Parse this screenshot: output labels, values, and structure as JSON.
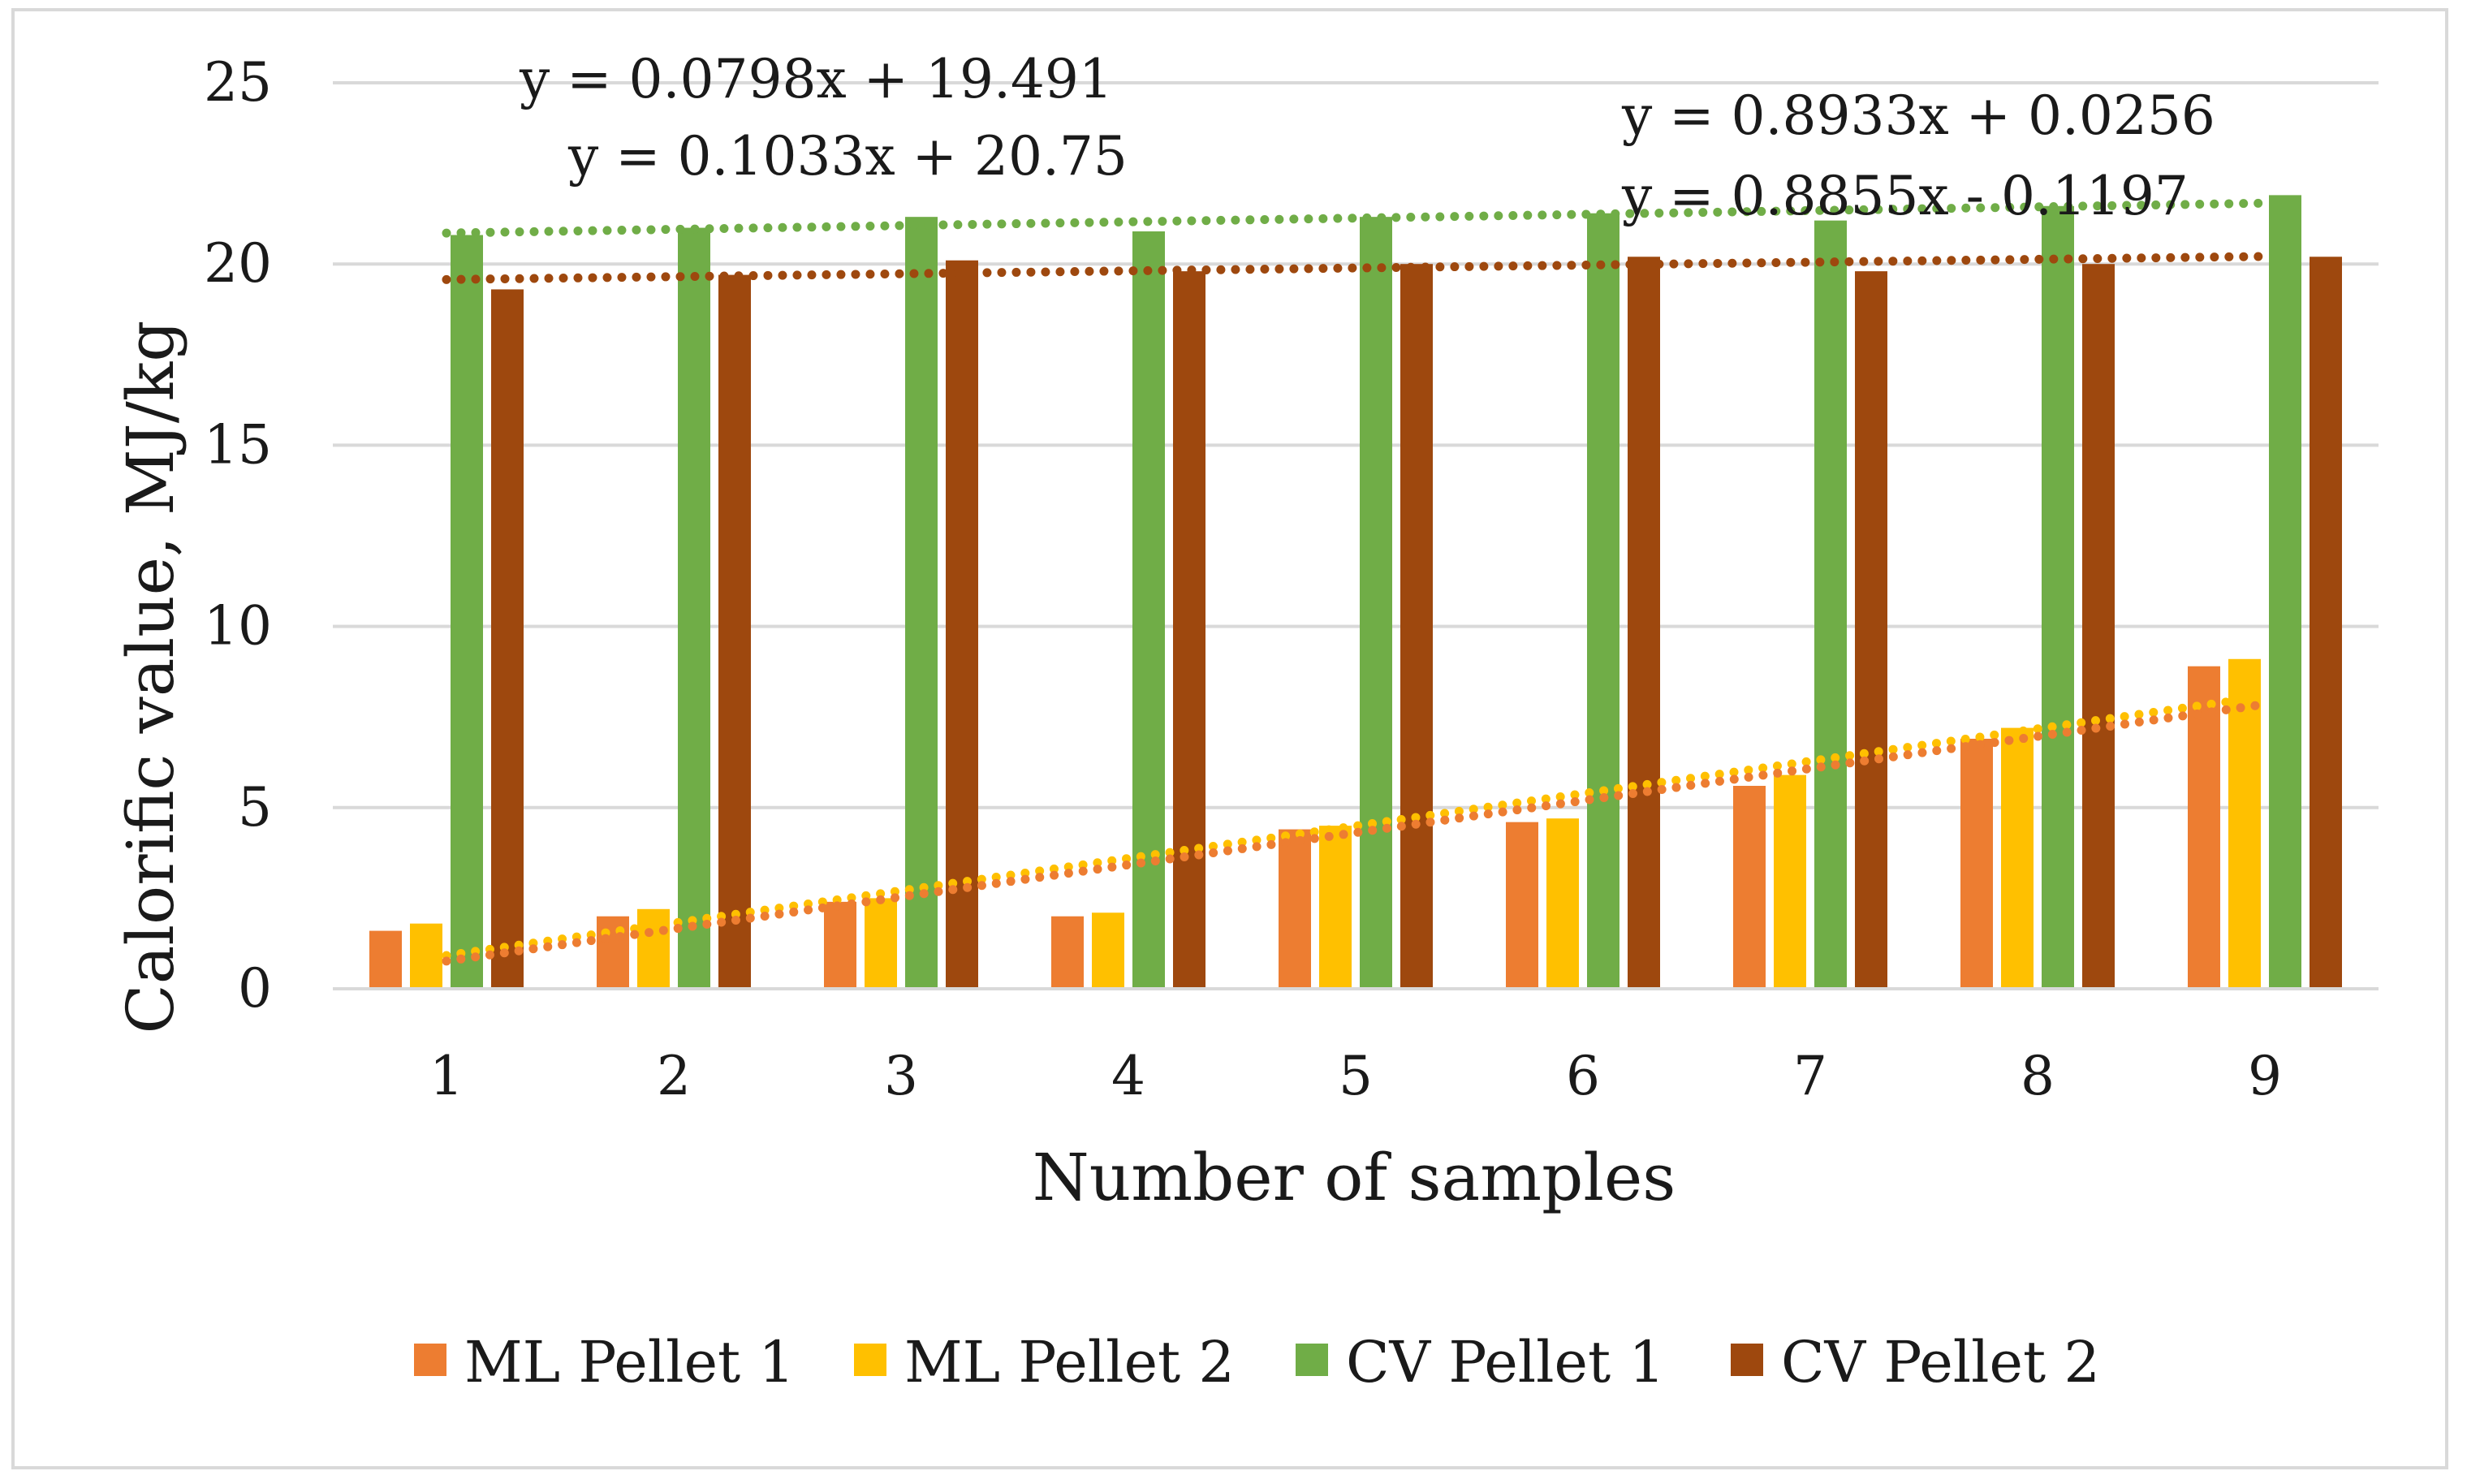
{
  "chart_data": {
    "type": "bar",
    "title": "",
    "xlabel": "Number of samples",
    "ylabel": "Calorific value, MJ/kg",
    "ylim": [
      0,
      25
    ],
    "yticks": [
      "0",
      "5",
      "10",
      "15",
      "20",
      "25"
    ],
    "categories": [
      "1",
      "2",
      "3",
      "4",
      "5",
      "6",
      "7",
      "8",
      "9"
    ],
    "grid": true,
    "legend_position": "bottom",
    "series": [
      {
        "name": "ML Pellet 1",
        "color": "#ed7d31",
        "values": [
          1.6,
          2.0,
          2.4,
          2.0,
          4.4,
          4.6,
          5.6,
          6.9,
          8.9
        ]
      },
      {
        "name": "ML Pellet 2",
        "color": "#ffc000",
        "values": [
          1.8,
          2.2,
          2.5,
          2.1,
          4.5,
          4.7,
          5.9,
          7.2,
          9.1
        ]
      },
      {
        "name": "CV Pellet 1",
        "color": "#70ad47",
        "values": [
          20.8,
          21.0,
          21.3,
          20.9,
          21.3,
          21.4,
          21.2,
          21.6,
          21.9
        ]
      },
      {
        "name": "CV Pellet 2",
        "color": "#9e480e",
        "values": [
          19.3,
          19.7,
          20.1,
          19.8,
          20.0,
          20.2,
          19.8,
          20.0,
          20.2
        ]
      }
    ],
    "trendlines": [
      {
        "series": "CV Pellet 2",
        "slope": 0.0798,
        "intercept": 19.491,
        "color": "#9e480e",
        "equation": "y = 0.0798x + 19.491"
      },
      {
        "series": "CV Pellet 1",
        "slope": 0.1033,
        "intercept": 20.75,
        "color": "#70ad47",
        "equation": "y = 0.1033x + 20.75"
      },
      {
        "series": "ML Pellet 2",
        "slope": 0.8933,
        "intercept": 0.0256,
        "color": "#ffc000",
        "equation": "y = 0.8933x + 0.0256"
      },
      {
        "series": "ML Pellet 1",
        "slope": 0.8855,
        "intercept": -0.1197,
        "color": "#ed7d31",
        "equation": "y = 0.8855x - 0.1197"
      }
    ]
  }
}
